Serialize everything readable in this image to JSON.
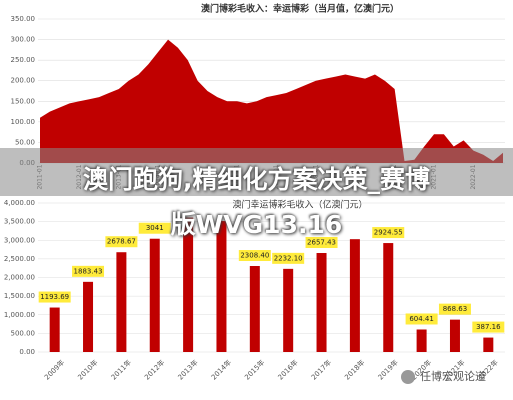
{
  "overlay_title_lines": [
    "澳门跑狗,精细化方案决策_赛博",
    "版WVG13.16"
  ],
  "watermark": "任博宏观论道",
  "chart_data": [
    {
      "type": "area",
      "title": "澳门博彩毛收入：幸运博彩（当月值，亿澳门元）",
      "color": "#c00000",
      "categories": [
        "2011-01",
        null,
        null,
        null,
        "2012-01",
        null,
        null,
        null,
        "2013-01",
        null,
        null,
        null,
        "2014-01",
        null,
        null,
        null,
        "2015-01",
        null,
        null,
        null,
        "2016-01",
        null,
        null,
        null,
        "2017-01",
        null,
        null,
        null,
        "2018-01",
        null,
        null,
        null,
        "2019-01",
        null,
        null,
        null,
        "2020-01",
        null,
        null,
        null,
        "2021-01",
        null,
        null,
        null,
        "2022-01",
        null,
        null,
        null
      ],
      "values": [
        110,
        125,
        135,
        145,
        150,
        155,
        160,
        170,
        180,
        200,
        215,
        240,
        270,
        300,
        280,
        250,
        200,
        175,
        160,
        150,
        150,
        145,
        150,
        160,
        165,
        170,
        180,
        190,
        200,
        205,
        210,
        215,
        210,
        205,
        215,
        200,
        180,
        5,
        8,
        40,
        70,
        70,
        40,
        55,
        30,
        20,
        5,
        25
      ],
      "ylim": [
        0,
        350
      ],
      "yticks": [
        {
          "value": 0,
          "label": "0.00"
        },
        {
          "value": 50,
          "label": "50.00"
        },
        {
          "value": 100,
          "label": "100.00"
        },
        {
          "value": 150,
          "label": "150.00"
        },
        {
          "value": 200,
          "label": "200.00"
        },
        {
          "value": 250,
          "label": "250.00"
        },
        {
          "value": 300,
          "label": "300.00"
        },
        {
          "value": 350,
          "label": "350.00"
        }
      ]
    },
    {
      "type": "bar",
      "title": "澳门幸运博彩毛收入（亿澳门元）",
      "color": "#c00000",
      "categories": [
        "2009年",
        "2010年",
        "2011年",
        "2012年",
        "2013年",
        "2014年",
        "2015年",
        "2016年",
        "2017年",
        "2018年",
        "2019年",
        "2020年",
        "2021年",
        "2022年"
      ],
      "values": [
        1193.69,
        1883.43,
        2678.67,
        3041,
        3607,
        3515,
        2308.4,
        2232.1,
        2657.43,
        3028.8,
        2924.55,
        604.41,
        868.63,
        387.16
      ],
      "value_labels": [
        "1193.69",
        "1883.43",
        "2678.67",
        "3041",
        null,
        null,
        "2308.40",
        "2232.10",
        "2657.43",
        null,
        "2924.55",
        "604.41",
        "868.63",
        "387.16"
      ],
      "ylim": [
        0,
        4000
      ],
      "yticks": [
        {
          "value": 0,
          "label": "0.00"
        },
        {
          "value": 500,
          "label": "500.00"
        },
        {
          "value": 1000,
          "label": "1,000.00"
        },
        {
          "value": 1500,
          "label": "1,500.00"
        },
        {
          "value": 2000,
          "label": "2,000.00"
        },
        {
          "value": 2500,
          "label": "2,500.00"
        },
        {
          "value": 3000,
          "label": "3,000.00"
        },
        {
          "value": 3500,
          "label": "3,500.00"
        },
        {
          "value": 4000,
          "label": "4,000.00"
        }
      ]
    }
  ]
}
